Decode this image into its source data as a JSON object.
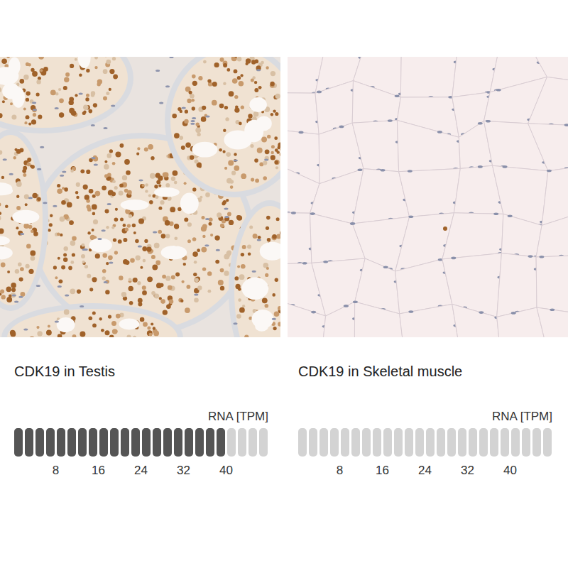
{
  "chart_data": [
    {
      "type": "bar",
      "orientation": "horizontal",
      "title": "CDK19 in Testis",
      "xlabel": "RNA [TPM]",
      "values": [
        40
      ],
      "color": "#555555",
      "xlim": [
        0,
        48
      ],
      "xticks": [
        8,
        16,
        24,
        32,
        40
      ],
      "tick_labels": "x"
    },
    {
      "type": "bar",
      "orientation": "horizontal",
      "title": "CDK19 in Skeletal muscle",
      "xlabel": "RNA [TPM]",
      "values": [
        0
      ],
      "color": "#555555",
      "xlim": [
        0,
        48
      ],
      "xticks": [
        8,
        16,
        24,
        32,
        40
      ],
      "tick_labels": "x"
    }
  ]
}
